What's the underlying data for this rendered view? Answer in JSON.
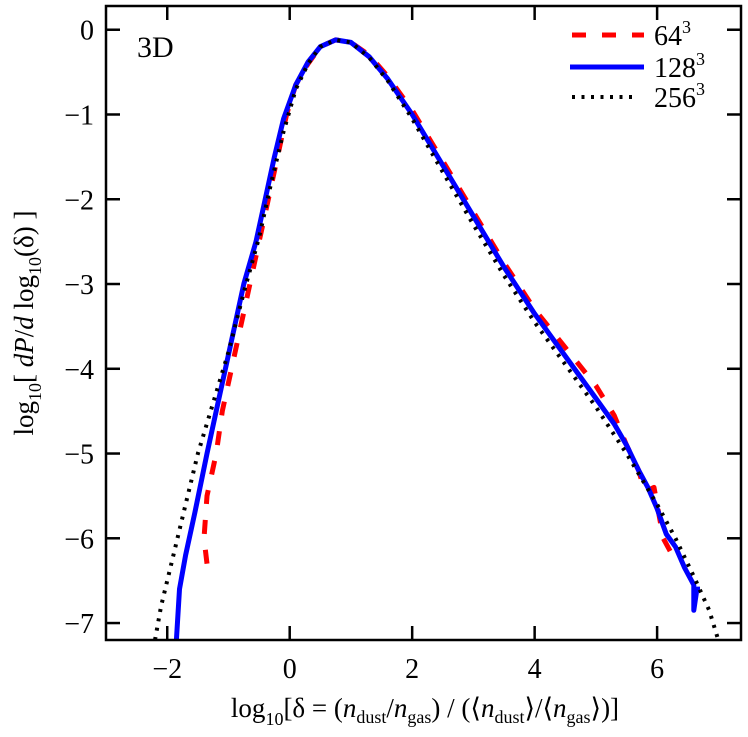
{
  "chart_data": {
    "type": "line",
    "title": "",
    "annotation": "3D",
    "xlabel": "log10[δ = (n_dust/n_gas) / (⟨n_dust⟩/⟨n_gas⟩)]",
    "ylabel": "log10[ dP/d log10(δ) ]",
    "xlim": [
      -3.0,
      7.37
    ],
    "ylim": [
      -7.2,
      0.28
    ],
    "xticks": [
      -2,
      0,
      2,
      4,
      6
    ],
    "xtick_labels": [
      "−2",
      "0",
      "2",
      "4",
      "6"
    ],
    "yticks": [
      0,
      -1,
      -2,
      -3,
      -4,
      -5,
      -6,
      -7
    ],
    "ytick_labels": [
      "0",
      "−1",
      "−2",
      "−3",
      "−4",
      "−5",
      "−6",
      "−7"
    ],
    "grid": false,
    "legend_position": "upper right",
    "legend": [
      "64^3",
      "128^3",
      "256^3"
    ],
    "series": [
      {
        "name": "64^3",
        "color": "#ff0000",
        "style": "dashed",
        "points": [
          [
            -1.35,
            -6.3
          ],
          [
            -1.4,
            -6.0
          ],
          [
            -1.35,
            -5.5
          ],
          [
            -1.2,
            -5.0
          ],
          [
            -1.1,
            -4.5
          ],
          [
            -0.95,
            -4.0
          ],
          [
            -0.8,
            -3.5
          ],
          [
            -0.65,
            -3.0
          ],
          [
            -0.5,
            -2.5
          ],
          [
            -0.35,
            -2.0
          ],
          [
            -0.2,
            -1.5
          ],
          [
            -0.05,
            -1.0
          ],
          [
            0.1,
            -0.65
          ],
          [
            0.3,
            -0.4
          ],
          [
            0.5,
            -0.2
          ],
          [
            0.75,
            -0.12
          ],
          [
            1.0,
            -0.15
          ],
          [
            1.3,
            -0.3
          ],
          [
            1.6,
            -0.55
          ],
          [
            2.0,
            -0.95
          ],
          [
            2.5,
            -1.55
          ],
          [
            3.0,
            -2.15
          ],
          [
            3.5,
            -2.75
          ],
          [
            4.0,
            -3.3
          ],
          [
            4.5,
            -3.75
          ],
          [
            5.0,
            -4.2
          ],
          [
            5.3,
            -4.55
          ],
          [
            5.5,
            -4.9
          ],
          [
            5.7,
            -5.2
          ],
          [
            5.8,
            -5.45
          ],
          [
            5.95,
            -5.4
          ],
          [
            6.0,
            -5.6
          ],
          [
            6.05,
            -5.8
          ],
          [
            6.1,
            -6.0
          ],
          [
            6.25,
            -6.2
          ]
        ]
      },
      {
        "name": "128^3",
        "color": "#0000ff",
        "style": "solid",
        "points": [
          [
            -1.85,
            -7.2
          ],
          [
            -1.8,
            -6.6
          ],
          [
            -1.7,
            -6.2
          ],
          [
            -1.55,
            -5.7
          ],
          [
            -1.45,
            -5.35
          ],
          [
            -1.35,
            -5.0
          ],
          [
            -1.2,
            -4.5
          ],
          [
            -1.05,
            -4.0
          ],
          [
            -0.9,
            -3.5
          ],
          [
            -0.75,
            -3.0
          ],
          [
            -0.55,
            -2.5
          ],
          [
            -0.4,
            -2.0
          ],
          [
            -0.25,
            -1.5
          ],
          [
            -0.1,
            -1.05
          ],
          [
            0.1,
            -0.65
          ],
          [
            0.3,
            -0.38
          ],
          [
            0.5,
            -0.2
          ],
          [
            0.75,
            -0.12
          ],
          [
            1.0,
            -0.15
          ],
          [
            1.3,
            -0.32
          ],
          [
            1.6,
            -0.58
          ],
          [
            2.0,
            -1.0
          ],
          [
            2.5,
            -1.6
          ],
          [
            3.0,
            -2.2
          ],
          [
            3.5,
            -2.8
          ],
          [
            4.0,
            -3.35
          ],
          [
            4.5,
            -3.85
          ],
          [
            5.0,
            -4.35
          ],
          [
            5.3,
            -4.65
          ],
          [
            5.5,
            -4.9
          ],
          [
            5.7,
            -5.2
          ],
          [
            5.85,
            -5.4
          ],
          [
            6.0,
            -5.65
          ],
          [
            6.15,
            -5.95
          ],
          [
            6.3,
            -6.1
          ],
          [
            6.45,
            -6.35
          ],
          [
            6.6,
            -6.55
          ],
          [
            6.6,
            -6.85
          ],
          [
            6.65,
            -6.6
          ],
          [
            6.7,
            -6.6
          ]
        ]
      },
      {
        "name": "256^3",
        "color": "#000000",
        "style": "dotted",
        "points": [
          [
            -2.2,
            -7.2
          ],
          [
            -2.1,
            -6.8
          ],
          [
            -1.9,
            -6.2
          ],
          [
            -1.7,
            -5.6
          ],
          [
            -1.5,
            -5.0
          ],
          [
            -1.25,
            -4.4
          ],
          [
            -1.0,
            -3.8
          ],
          [
            -0.75,
            -3.1
          ],
          [
            -0.5,
            -2.45
          ],
          [
            -0.3,
            -1.8
          ],
          [
            -0.1,
            -1.2
          ],
          [
            0.1,
            -0.7
          ],
          [
            0.3,
            -0.4
          ],
          [
            0.5,
            -0.2
          ],
          [
            0.75,
            -0.12
          ],
          [
            1.0,
            -0.15
          ],
          [
            1.3,
            -0.33
          ],
          [
            1.6,
            -0.6
          ],
          [
            2.0,
            -1.05
          ],
          [
            2.5,
            -1.68
          ],
          [
            3.0,
            -2.3
          ],
          [
            3.5,
            -2.9
          ],
          [
            4.0,
            -3.45
          ],
          [
            4.5,
            -3.95
          ],
          [
            5.0,
            -4.45
          ],
          [
            5.5,
            -5.0
          ],
          [
            6.0,
            -5.6
          ],
          [
            6.3,
            -6.0
          ],
          [
            6.6,
            -6.45
          ],
          [
            6.85,
            -6.85
          ],
          [
            7.0,
            -7.2
          ]
        ]
      }
    ]
  }
}
